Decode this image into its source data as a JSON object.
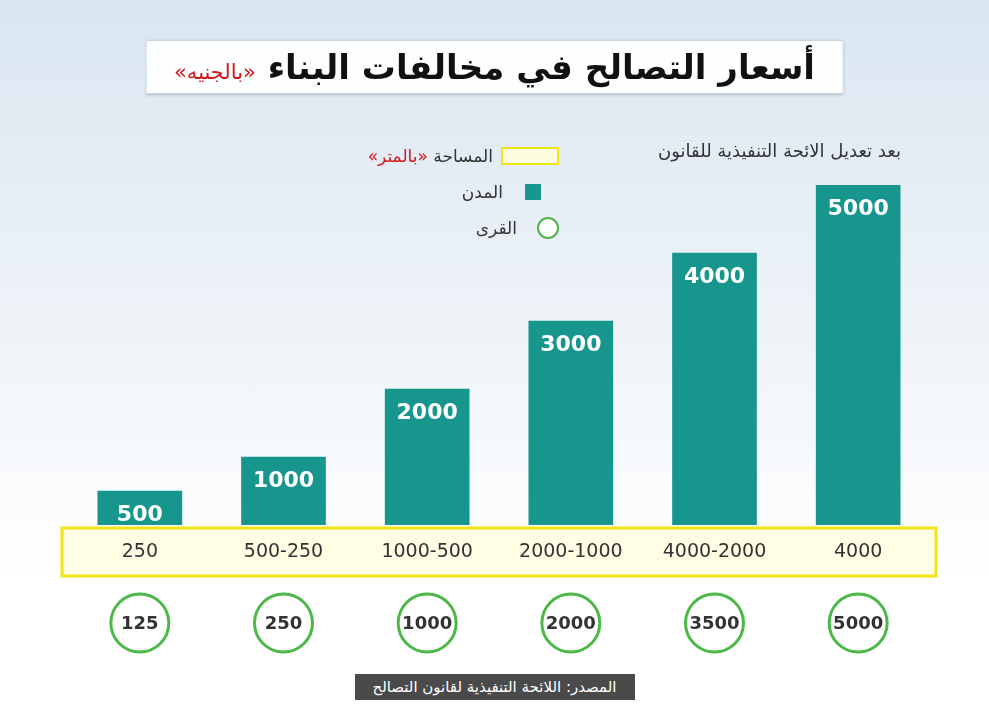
{
  "chart_data": {
    "type": "bar",
    "title": "أسعار التصالح في مخالفات البناء «بالجنيه»",
    "subtitle": "بعد تعديل الائحة التنفيذية للقانون",
    "xlabel": "المساحة «بالمتر»",
    "source": "المصدر: اللائحة التنفيذية لقانون التصالح",
    "categories": [
      "250",
      "500-250",
      "1000-500",
      "2000-1000",
      "4000-2000",
      "4000"
    ],
    "series": [
      {
        "name": "المدن",
        "color": "#17968e",
        "values": [
          500,
          1000,
          2000,
          3000,
          4000,
          5000
        ]
      },
      {
        "name": "القرى",
        "color": "#4cb848",
        "marker": "circle",
        "values": [
          125,
          250,
          1000,
          2000,
          3500,
          5000
        ]
      }
    ],
    "ylim": [
      0,
      5000
    ],
    "data_labels": true,
    "tick_labels": "x",
    "grid": false,
    "legend": "top"
  }
}
